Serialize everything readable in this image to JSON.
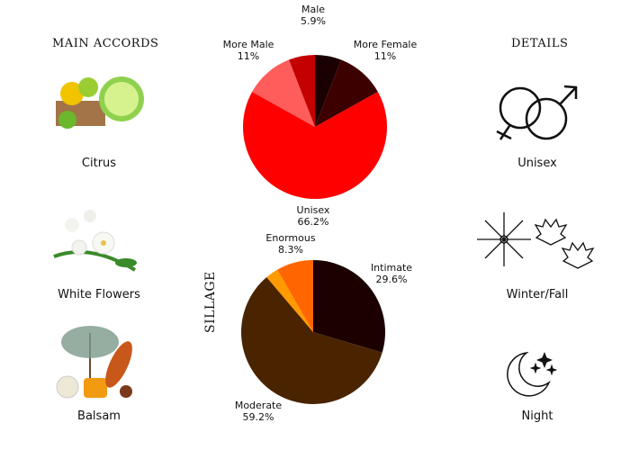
{
  "main_accords": {
    "title": "MAIN ACCORDS",
    "items": [
      {
        "label": "Citrus",
        "icon": "citrus-fruits-image"
      },
      {
        "label": "White Flowers",
        "icon": "white-flowers-image"
      },
      {
        "label": "Balsam",
        "icon": "balsam-image"
      }
    ]
  },
  "details": {
    "title": "DETAILS",
    "items": [
      {
        "label": "Unisex",
        "icon": "gender-symbols-icon"
      },
      {
        "label": "Winter/Fall",
        "icon": "snowflake-maple-leaf-icon"
      },
      {
        "label": "Night",
        "icon": "moon-stars-icon"
      }
    ]
  },
  "chart_data": [
    {
      "type": "pie",
      "title": "",
      "slices": [
        {
          "label": "",
          "value": 5.9,
          "color": "#1a0000"
        },
        {
          "label": "More Female",
          "value": 11,
          "display": "11%",
          "color": "#3d0000"
        },
        {
          "label": "Unisex",
          "value": 66.2,
          "display": "66.2%",
          "color": "#ff0000"
        },
        {
          "label": "More Male",
          "value": 11,
          "display": "11%",
          "color": "#ff5c5c"
        },
        {
          "label": "Male",
          "value": 5.9,
          "display": "5.9%",
          "color": "#c40000"
        }
      ]
    },
    {
      "type": "pie",
      "title": "SILLAGE",
      "slices": [
        {
          "label": "Intimate",
          "value": 29.6,
          "display": "29.6%",
          "color": "#1c0000"
        },
        {
          "label": "Moderate",
          "value": 59.2,
          "display": "59.2%",
          "color": "#4a2400"
        },
        {
          "label": "",
          "value": 2.9,
          "color": "#ff9a00"
        },
        {
          "label": "Enormous",
          "value": 8.3,
          "display": "8.3%",
          "color": "#ff6600"
        }
      ]
    }
  ]
}
